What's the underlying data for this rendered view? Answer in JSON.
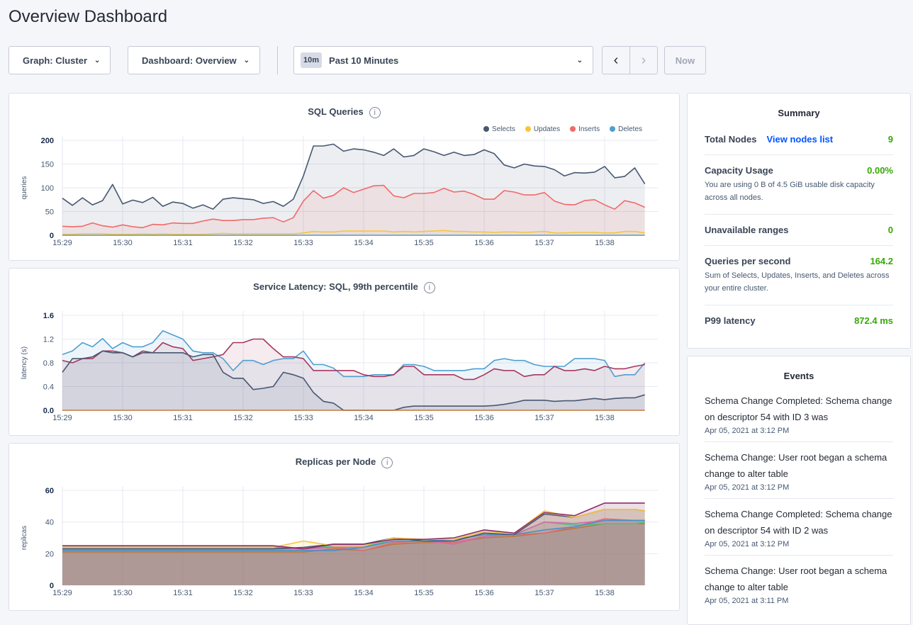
{
  "page": {
    "title": "Overview Dashboard"
  },
  "toolbar": {
    "graph_label": "Graph: Cluster",
    "dashboard_label": "Dashboard: Overview",
    "time_badge": "10m",
    "time_label": "Past 10 Minutes",
    "prev_icon": "chevron-left-icon",
    "next_icon": "chevron-right-icon",
    "now_label": "Now"
  },
  "summary": {
    "title": "Summary",
    "rows": [
      {
        "label": "Total Nodes",
        "link": "View nodes list",
        "value": "9"
      },
      {
        "label": "Capacity Usage",
        "value": "0.00%",
        "desc": "You are using 0 B of 4.5 GiB usable disk capacity across all nodes."
      },
      {
        "label": "Unavailable ranges",
        "value": "0"
      },
      {
        "label": "Queries per second",
        "value": "164.2",
        "desc": "Sum of Selects, Updates, Inserts, and Deletes across your entire cluster."
      },
      {
        "label": "P99 latency",
        "value": "872.4 ms"
      }
    ],
    "value_color": "#37a806"
  },
  "events": {
    "title": "Events",
    "items": [
      {
        "text": "Schema Change Completed: Schema change on descriptor 54 with ID 3 was",
        "date": "Apr 05, 2021 at 3:12 PM"
      },
      {
        "text": "Schema Change: User root began a schema change to alter table",
        "date": "Apr 05, 2021 at 3:12 PM"
      },
      {
        "text": "Schema Change Completed: Schema change on descriptor 54 with ID 2 was",
        "date": "Apr 05, 2021 at 3:12 PM"
      },
      {
        "text": "Schema Change: User root began a schema change to alter table",
        "date": "Apr 05, 2021 at 3:11 PM"
      }
    ]
  },
  "chart_data": [
    {
      "type": "area",
      "title": "SQL Queries",
      "ylabel": "queries",
      "ylim": [
        0,
        200
      ],
      "yticks": [
        "0",
        "50",
        "100",
        "150",
        "200"
      ],
      "grid": true,
      "legend": "top-right",
      "xticks": [
        "15:29",
        "15:30",
        "15:31",
        "15:32",
        "15:33",
        "15:34",
        "15:35",
        "15:36",
        "15:37",
        "15:38"
      ],
      "x": [
        "15:29:00",
        "15:29:10",
        "15:29:20",
        "15:29:30",
        "15:29:40",
        "15:29:50",
        "15:30:00",
        "15:30:10",
        "15:30:20",
        "15:30:30",
        "15:30:40",
        "15:30:50",
        "15:31:00",
        "15:31:10",
        "15:31:20",
        "15:31:30",
        "15:31:40",
        "15:31:50",
        "15:32:00",
        "15:32:10",
        "15:32:20",
        "15:32:30",
        "15:32:40",
        "15:32:50",
        "15:33:00",
        "15:33:10",
        "15:33:20",
        "15:33:30",
        "15:33:40",
        "15:33:50",
        "15:34:00",
        "15:34:10",
        "15:34:20",
        "15:34:30",
        "15:34:40",
        "15:34:50",
        "15:35:00",
        "15:35:10",
        "15:35:20",
        "15:35:30",
        "15:35:40",
        "15:35:50",
        "15:36:00",
        "15:36:10",
        "15:36:20",
        "15:36:30",
        "15:36:40",
        "15:36:50",
        "15:37:00",
        "15:37:10",
        "15:37:20",
        "15:37:30",
        "15:37:40",
        "15:37:50",
        "15:38:00",
        "15:38:10",
        "15:38:20",
        "15:38:30",
        "15:38:40"
      ],
      "series": [
        {
          "name": "Selects",
          "color": "#475872",
          "values": [
            78,
            63,
            79,
            64,
            73,
            107,
            66,
            74,
            69,
            80,
            61,
            70,
            67,
            57,
            64,
            55,
            76,
            79,
            77,
            75,
            67,
            71,
            61,
            76,
            125,
            188,
            188,
            192,
            177,
            182,
            180,
            175,
            168,
            182,
            165,
            168,
            182,
            176,
            168,
            175,
            168,
            170,
            180,
            172,
            148,
            142,
            150,
            146,
            145,
            138,
            125,
            132,
            131,
            133,
            145,
            121,
            124,
            142,
            108
          ]
        },
        {
          "name": "Updates",
          "color": "#f7c43c",
          "values": [
            2,
            2,
            3,
            3,
            3,
            2,
            2,
            2,
            3,
            2,
            3,
            2,
            2,
            2,
            2,
            3,
            4,
            3,
            3,
            3,
            3,
            3,
            3,
            3,
            5,
            8,
            7,
            7,
            9,
            9,
            9,
            9,
            9,
            7,
            8,
            7,
            8,
            9,
            10,
            8,
            8,
            7,
            7,
            6,
            7,
            7,
            6,
            7,
            8,
            5,
            5,
            6,
            6,
            6,
            5,
            5,
            8,
            8,
            5
          ]
        },
        {
          "name": "Inserts",
          "color": "#f16969",
          "values": [
            19,
            18,
            19,
            26,
            20,
            17,
            22,
            18,
            16,
            23,
            22,
            26,
            25,
            25,
            30,
            34,
            31,
            31,
            33,
            33,
            36,
            37,
            28,
            37,
            72,
            94,
            78,
            84,
            100,
            90,
            97,
            104,
            105,
            83,
            79,
            88,
            88,
            90,
            99,
            91,
            93,
            86,
            76,
            76,
            94,
            91,
            85,
            85,
            90,
            72,
            65,
            64,
            73,
            75,
            64,
            55,
            73,
            68,
            59
          ]
        },
        {
          "name": "Deletes",
          "color": "#4e9fd1",
          "values": [
            0,
            0,
            0,
            0,
            0,
            0,
            0,
            0,
            0,
            0,
            0,
            0,
            0,
            0,
            0,
            0,
            0,
            0,
            0,
            0,
            0,
            0,
            0,
            0,
            0,
            0,
            0,
            0,
            0,
            0,
            0,
            0,
            0,
            0,
            0,
            0,
            0,
            0,
            0,
            0,
            0,
            0,
            0,
            0,
            0,
            0,
            0,
            0,
            0,
            0,
            0,
            0,
            0,
            0,
            0,
            0,
            0,
            0,
            0
          ]
        }
      ]
    },
    {
      "type": "area",
      "title": "Service Latency: SQL, 99th percentile",
      "ylabel": "latency (s)",
      "ylim": [
        0,
        1.6
      ],
      "yticks": [
        "0.0",
        "0.4",
        "0.8",
        "1.2",
        "1.6"
      ],
      "grid": true,
      "xticks": [
        "15:29",
        "15:30",
        "15:31",
        "15:32",
        "15:33",
        "15:34",
        "15:35",
        "15:36",
        "15:37",
        "15:38"
      ],
      "x": [
        "15:29:00",
        "15:29:10",
        "15:29:20",
        "15:29:30",
        "15:29:40",
        "15:29:50",
        "15:30:00",
        "15:30:10",
        "15:30:20",
        "15:30:30",
        "15:30:40",
        "15:30:50",
        "15:31:00",
        "15:31:10",
        "15:31:20",
        "15:31:30",
        "15:31:40",
        "15:31:50",
        "15:32:00",
        "15:32:10",
        "15:32:20",
        "15:32:30",
        "15:32:40",
        "15:32:50",
        "15:33:00",
        "15:33:10",
        "15:33:20",
        "15:33:30",
        "15:33:40",
        "15:33:50",
        "15:34:00",
        "15:34:10",
        "15:34:20",
        "15:34:30",
        "15:34:40",
        "15:34:50",
        "15:35:00",
        "15:35:10",
        "15:35:20",
        "15:35:30",
        "15:35:40",
        "15:35:50",
        "15:36:00",
        "15:36:10",
        "15:36:20",
        "15:36:30",
        "15:36:40",
        "15:36:50",
        "15:37:00",
        "15:37:10",
        "15:37:20",
        "15:37:30",
        "15:37:40",
        "15:37:50",
        "15:38:00",
        "15:38:10",
        "15:38:20",
        "15:38:30",
        "15:38:40"
      ],
      "series": [
        {
          "color": "#4e9fd1",
          "values": [
            0.94,
            1.0,
            1.14,
            1.07,
            1.21,
            1.04,
            1.14,
            1.07,
            1.07,
            1.14,
            1.34,
            1.27,
            1.2,
            1.0,
            0.97,
            0.97,
            0.87,
            0.67,
            0.84,
            0.84,
            0.77,
            0.84,
            0.87,
            0.87,
            1.0,
            0.77,
            0.77,
            0.71,
            0.57,
            0.57,
            0.57,
            0.6,
            0.6,
            0.6,
            0.77,
            0.77,
            0.74,
            0.67,
            0.67,
            0.67,
            0.67,
            0.7,
            0.7,
            0.84,
            0.87,
            0.84,
            0.84,
            0.77,
            0.74,
            0.74,
            0.74,
            0.87,
            0.87,
            0.87,
            0.84,
            0.57,
            0.6,
            0.6,
            0.8
          ]
        },
        {
          "color": "#a53860",
          "values": [
            0.84,
            0.8,
            0.87,
            0.87,
            1.0,
            1.0,
            0.97,
            0.9,
            1.0,
            0.97,
            1.14,
            1.07,
            1.04,
            0.84,
            0.87,
            0.9,
            0.94,
            1.14,
            1.14,
            1.2,
            1.2,
            1.04,
            0.9,
            0.9,
            0.87,
            0.67,
            0.67,
            0.67,
            0.67,
            0.67,
            0.6,
            0.57,
            0.57,
            0.6,
            0.74,
            0.74,
            0.6,
            0.6,
            0.6,
            0.6,
            0.52,
            0.52,
            0.6,
            0.7,
            0.67,
            0.67,
            0.57,
            0.6,
            0.6,
            0.74,
            0.67,
            0.67,
            0.7,
            0.67,
            0.74,
            0.7,
            0.7,
            0.74,
            0.77
          ]
        },
        {
          "color": "#475872",
          "values": [
            0.64,
            0.87,
            0.87,
            0.9,
            1.0,
            0.97,
            0.97,
            0.9,
            0.97,
            0.97,
            0.97,
            0.97,
            0.97,
            0.9,
            0.94,
            0.94,
            0.64,
            0.54,
            0.54,
            0.35,
            0.37,
            0.4,
            0.64,
            0.6,
            0.54,
            0.3,
            0.15,
            0.12,
            0,
            0,
            0,
            0,
            0,
            0,
            0.05,
            0.07,
            0.07,
            0.07,
            0.07,
            0.07,
            0.07,
            0.07,
            0.07,
            0.08,
            0.1,
            0.13,
            0.17,
            0.17,
            0.17,
            0.15,
            0.16,
            0.16,
            0.18,
            0.2,
            0.18,
            0.2,
            0.21,
            0.21,
            0.26
          ]
        },
        {
          "color": "#c47a3a",
          "values": [
            0,
            0,
            0,
            0,
            0,
            0,
            0,
            0,
            0,
            0,
            0,
            0,
            0,
            0,
            0,
            0,
            0,
            0,
            0,
            0,
            0,
            0,
            0,
            0,
            0,
            0,
            0,
            0,
            0,
            0,
            0,
            0,
            0,
            0,
            0,
            0,
            0,
            0,
            0,
            0,
            0,
            0,
            0,
            0,
            0,
            0,
            0,
            0,
            0,
            0,
            0,
            0,
            0,
            0,
            0,
            0,
            0,
            0,
            0
          ]
        }
      ]
    },
    {
      "type": "area",
      "title": "Replicas per Node",
      "ylabel": "replicas",
      "ylim": [
        0,
        60
      ],
      "yticks": [
        "0",
        "20",
        "40",
        "60"
      ],
      "grid": true,
      "xticks": [
        "15:29",
        "15:30",
        "15:31",
        "15:32",
        "15:33",
        "15:34",
        "15:35",
        "15:36",
        "15:37",
        "15:38"
      ],
      "x": [
        "15:29:00",
        "15:29:30",
        "15:30:00",
        "15:30:30",
        "15:31:00",
        "15:31:30",
        "15:32:00",
        "15:32:30",
        "15:33:00",
        "15:33:30",
        "15:34:00",
        "15:34:30",
        "15:35:00",
        "15:35:30",
        "15:36:00",
        "15:36:30",
        "15:37:00",
        "15:37:30",
        "15:38:00",
        "15:38:30",
        "15:38:40"
      ],
      "series": [
        {
          "color": "#b97a3a",
          "values": [
            21,
            21,
            21,
            21,
            21,
            21,
            21,
            21,
            21,
            23,
            22,
            26,
            27,
            27,
            30,
            31,
            33,
            36,
            39,
            39,
            39
          ]
        },
        {
          "color": "#e06c75",
          "values": [
            25,
            25,
            25,
            25,
            25,
            25,
            25,
            25,
            23,
            24,
            22,
            27,
            28,
            27,
            31,
            32,
            33,
            37,
            42,
            41,
            41
          ]
        },
        {
          "color": "#4bc48a",
          "values": [
            24,
            24,
            24,
            24,
            24,
            24,
            24,
            24,
            23,
            25,
            25,
            28,
            28,
            29,
            32,
            32,
            40,
            38,
            39,
            39,
            40
          ]
        },
        {
          "color": "#d36bac",
          "values": [
            23,
            23,
            23,
            23,
            23,
            23,
            23,
            23,
            23,
            24,
            24,
            28,
            28,
            26,
            31,
            32,
            40,
            39,
            41,
            41,
            41
          ]
        },
        {
          "color": "#4a90c7",
          "values": [
            22,
            22,
            22,
            22,
            22,
            22,
            22,
            22,
            22,
            22,
            24,
            28,
            28,
            29,
            32,
            32,
            35,
            37,
            41,
            41,
            41
          ]
        },
        {
          "color": "#475872",
          "values": [
            23,
            23,
            23,
            23,
            23,
            23,
            23,
            23,
            24,
            26,
            26,
            30,
            28,
            28,
            33,
            32,
            45,
            43,
            48,
            48,
            47
          ]
        },
        {
          "color": "#f7c43c",
          "values": [
            24,
            24,
            24,
            24,
            24,
            24,
            24,
            24,
            28,
            25,
            25,
            30,
            29,
            29,
            34,
            33,
            47,
            43,
            48,
            48,
            47
          ]
        },
        {
          "color": "#8e2f6b",
          "values": [
            25,
            25,
            25,
            25,
            25,
            25,
            25,
            25,
            23,
            26,
            26,
            29,
            29,
            30,
            35,
            33,
            46,
            44,
            52,
            52,
            52
          ]
        }
      ]
    }
  ]
}
